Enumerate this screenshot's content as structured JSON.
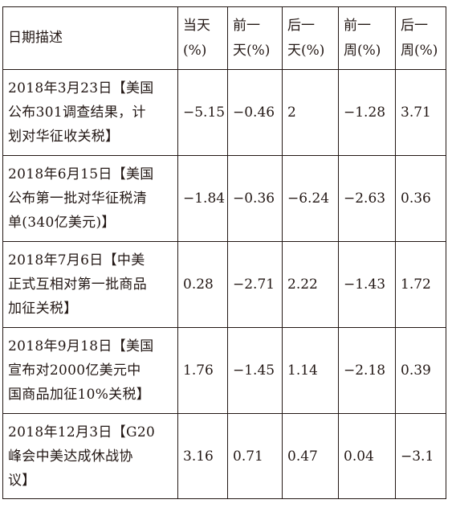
{
  "headers": [
    {
      "line1": "日期描述",
      "line2": ""
    },
    {
      "line1": "当天",
      "line2": "(%)"
    },
    {
      "line1": "前一",
      "line2": "天(%)"
    },
    {
      "line1": "后一",
      "line2": "天(%)"
    },
    {
      "line1": "前一",
      "line2": "周(%)"
    },
    {
      "line1": "后一",
      "line2": "周(%)"
    }
  ],
  "rows": [
    {
      "desc_lines": [
        "2018年3月23日【美国",
        "公布301调查结果，计",
        "划对华征收关税】"
      ],
      "same_day": "−5.15",
      "prev_day": "−0.46",
      "next_day": "2",
      "prev_week": "−1.28",
      "next_week": "3.71"
    },
    {
      "desc_lines": [
        "2018年6月15日【美国",
        "公布第一批对华征税清",
        "单(340亿美元)】"
      ],
      "same_day": "−1.84",
      "prev_day": "−0.36",
      "next_day": "−6.24",
      "prev_week": "−2.63",
      "next_week": "0.36"
    },
    {
      "desc_lines": [
        "2018年7月6日【中美",
        "正式互相对第一批商品",
        "加征关税】"
      ],
      "same_day": "0.28",
      "prev_day": "−2.71",
      "next_day": "2.22",
      "prev_week": "−1.43",
      "next_week": "1.72"
    },
    {
      "desc_lines": [
        "2018年9月18日【美国",
        "宣布对2000亿美元中",
        "国商品加征10%关税】"
      ],
      "same_day": "1.76",
      "prev_day": "−1.45",
      "next_day": "1.14",
      "prev_week": "−2.18",
      "next_week": "0.39"
    },
    {
      "desc_lines": [
        "2018年12月3日【G20",
        "峰会中美达成休战协",
        "议】"
      ],
      "same_day": "3.16",
      "prev_day": "0.71",
      "next_day": "0.47",
      "prev_week": "0.04",
      "next_week": "−3.1"
    }
  ]
}
